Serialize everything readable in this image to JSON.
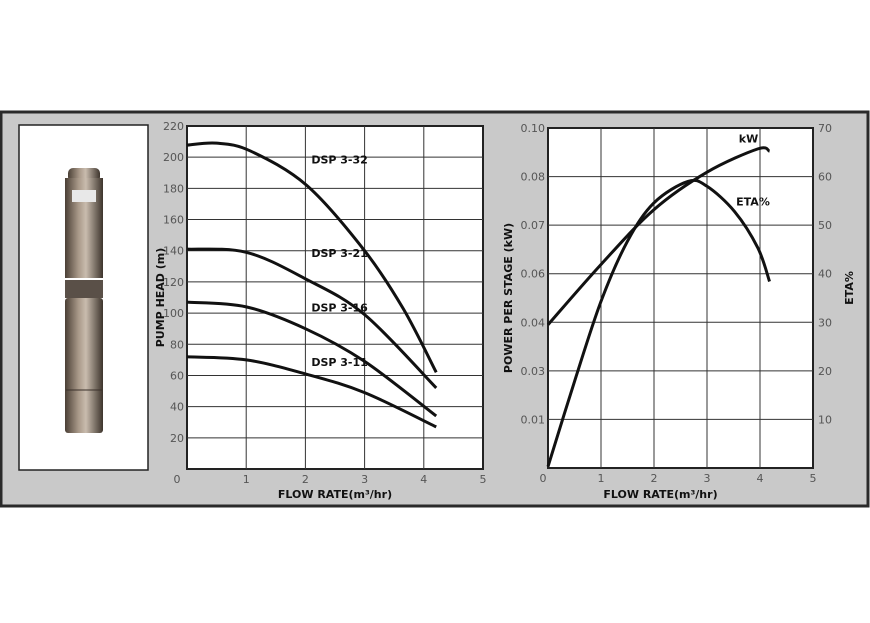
{
  "colors": {
    "panel": "#c9c9c9",
    "border": "#2a2a2a",
    "plot_bg": "#ffffff",
    "curve": "#111111",
    "grid": "#333333"
  },
  "product_image": {
    "subject": "submersible-pump-photo"
  },
  "chart_data": [
    {
      "type": "line",
      "xlabel": "FLOW RATE(m³/hr)",
      "ylabel": "PUMP HEAD (m)",
      "xlim": [
        0,
        5
      ],
      "ylim": [
        0,
        220
      ],
      "grid": true,
      "x_ticks": [
        "0",
        "1",
        "2",
        "3",
        "4",
        "5"
      ],
      "y_ticks": [
        {
          "value": 220,
          "label": "220"
        },
        {
          "value": 200,
          "label": "200"
        },
        {
          "value": 180,
          "label": "180"
        },
        {
          "value": 160,
          "label": "160"
        },
        {
          "value": 140,
          "label": "140"
        },
        {
          "value": 120,
          "label": "120"
        },
        {
          "value": 100,
          "label": "100"
        },
        {
          "value": 80,
          "label": "80"
        },
        {
          "value": 60,
          "label": "60"
        },
        {
          "value": 40,
          "label": "40"
        },
        {
          "value": 20,
          "label": "20"
        }
      ],
      "series": [
        {
          "name": "DSP 3-32",
          "label_at": [
            2.1,
            196
          ],
          "x": [
            0,
            0.5,
            1.07,
            2.02,
            2.98,
            3.65,
            4.21
          ],
          "y": [
            207.7,
            209,
            204,
            182,
            141,
            103,
            62
          ]
        },
        {
          "name": "DSP 3-21",
          "label_at": [
            2.1,
            136
          ],
          "x": [
            0,
            1,
            2,
            3,
            4.21
          ],
          "y": [
            141,
            139,
            122,
            99,
            52
          ]
        },
        {
          "name": "DSP 3-16",
          "label_at": [
            2.1,
            101
          ],
          "x": [
            0,
            1,
            2,
            3,
            4.21
          ],
          "y": [
            107,
            104,
            90,
            69,
            34
          ]
        },
        {
          "name": "DSP 3-11",
          "label_at": [
            2.1,
            66
          ],
          "x": [
            0,
            1,
            2,
            3,
            4.21
          ],
          "y": [
            72,
            70,
            61,
            49,
            27
          ]
        }
      ]
    },
    {
      "type": "line",
      "xlabel": "FLOW RATE(m³/hr)",
      "ylabel": "POWER PER STAGE (kW)",
      "y2label": "ETA%",
      "xlim": [
        0,
        5
      ],
      "y2lim": [
        0,
        70
      ],
      "grid": true,
      "x_ticks": [
        "0",
        "1",
        "2",
        "3",
        "4",
        "5"
      ],
      "y_ticks": [
        {
          "value": 0.1,
          "label": "0.10"
        },
        {
          "value": 0.08,
          "label": "0.08"
        },
        {
          "value": 0.07,
          "label": "0.07"
        },
        {
          "value": 0.06,
          "label": "0.06"
        },
        {
          "value": 0.04,
          "label": "0.04"
        },
        {
          "value": 0.03,
          "label": "0.03"
        },
        {
          "value": 0.01,
          "label": "0.01"
        }
      ],
      "y2_ticks": [
        "70",
        "60",
        "50",
        "40",
        "30",
        "20",
        "10"
      ],
      "series": [
        {
          "name": "kW",
          "axis": "left",
          "label_at": [
            3.6,
            0.094
          ],
          "x": [
            0,
            1,
            2,
            3,
            3.96,
            4.18
          ],
          "y": [
            0.0395,
            0.0619,
            0.0732,
            0.0818,
            0.0914,
            0.0904
          ]
        },
        {
          "name": "ETA%",
          "axis": "right",
          "label_at": [
            3.55,
            54
          ],
          "x": [
            0,
            0.5,
            1,
            1.5,
            2,
            2.64,
            3,
            3.52,
            3.96,
            4.18
          ],
          "y": [
            0.3,
            17.8,
            34.3,
            46.7,
            54.6,
            59,
            58,
            52.8,
            45.3,
            38.4
          ]
        }
      ]
    }
  ]
}
